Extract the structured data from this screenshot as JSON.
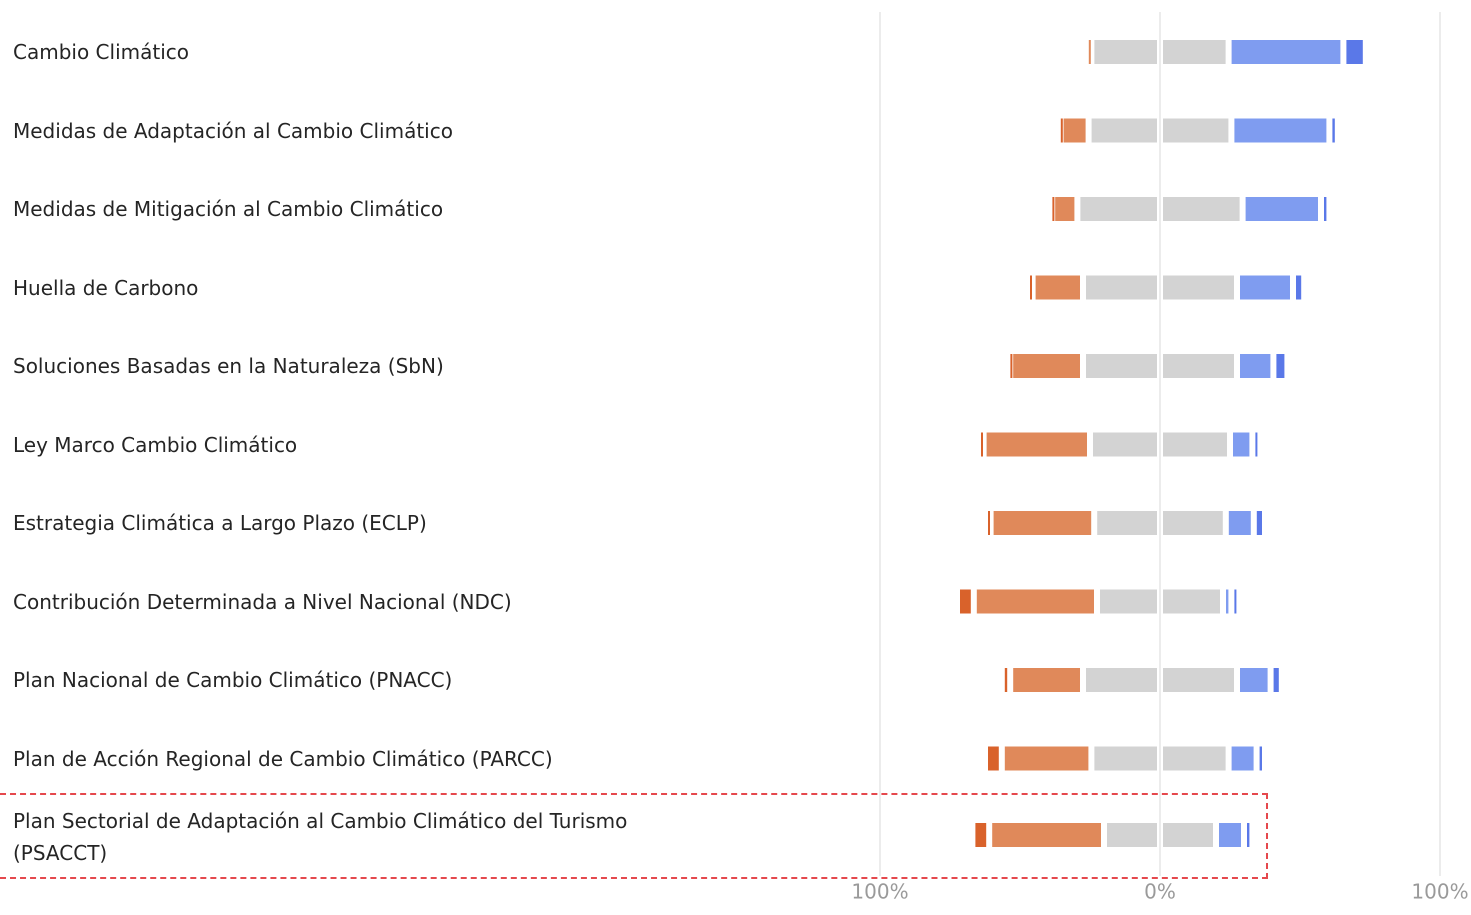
{
  "chart_data": {
    "type": "diverging-bar",
    "categories": [
      "Cambio Climático",
      "Medidas de Adaptación al Cambio Climático",
      "Medidas de Mitigación al Cambio Climático",
      "Huella de Carbono",
      "Soluciones Basadas en la Naturaleza (SbN)",
      "Ley Marco Cambio Climático",
      "Estrategia Climática a Largo Plazo (ECLP)",
      "Contribución Determinada a Nivel Nacional (NDC)",
      "Plan Nacional de Cambio Climático (PNACC)",
      "Plan de Acción Regional de Cambio Climático (PARCC)",
      "Plan Sectorial de Adaptación al Cambio Climático del Turismo (PSACCT)"
    ],
    "series": [
      {
        "color": "#d9622b",
        "values": [
          0,
          1,
          1,
          2,
          1,
          2,
          2,
          6,
          3,
          6,
          6
        ]
      },
      {
        "color": "#e0895a",
        "values": [
          2,
          10,
          9,
          18,
          26,
          38,
          37,
          44,
          26,
          32,
          41
        ]
      },
      {
        "color": "#d3d3d3",
        "values": [
          49,
          51,
          59,
          55,
          55,
          50,
          47,
          45,
          55,
          49,
          40
        ]
      },
      {
        "color": "#7f9cf0",
        "values": [
          41,
          35,
          28,
          20,
          13,
          8,
          10,
          3,
          12,
          10,
          10
        ]
      },
      {
        "color": "#5a78e8",
        "values": [
          8,
          3,
          3,
          4,
          5,
          2,
          4,
          2,
          4,
          3,
          3
        ]
      }
    ],
    "xlim": [
      -100,
      100
    ],
    "xticks": [
      {
        "value": -100,
        "label": "100%"
      },
      {
        "value": 0,
        "label": "0%"
      },
      {
        "value": 100,
        "label": "100%"
      }
    ],
    "grid": true
  }
}
